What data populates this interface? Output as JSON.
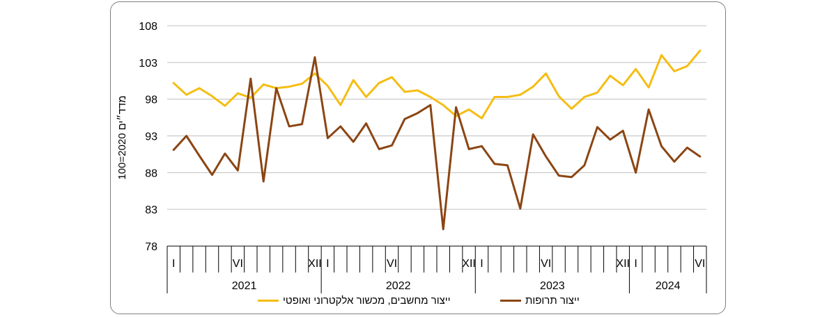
{
  "chart_data": {
    "type": "line",
    "ylabel": "מדד״ים 2020=100",
    "ylim": [
      78,
      108
    ],
    "yticks": [
      "108",
      "103",
      "98",
      "93",
      "88",
      "83",
      "78"
    ],
    "month_labels": [
      "I",
      "",
      "",
      "",
      "",
      "VI",
      "",
      "",
      "",
      "",
      "",
      "XII",
      "I",
      "",
      "",
      "",
      "",
      "VI",
      "",
      "",
      "",
      "",
      "",
      "XII",
      "I",
      "",
      "",
      "",
      "",
      "VI",
      "",
      "",
      "",
      "",
      "",
      "XII",
      "I",
      "",
      "",
      "",
      "",
      "VI"
    ],
    "years": [
      "2021",
      "2022",
      "2023",
      "2024"
    ],
    "series": [
      {
        "name": "ייצור מחשבים, מכשור אלקטרוני ואופטי",
        "color": "#f5bd13",
        "values": [
          100.2,
          98.6,
          99.5,
          98.4,
          97.1,
          98.8,
          98.2,
          100.0,
          99.5,
          99.7,
          100.1,
          101.5,
          99.8,
          97.2,
          100.6,
          98.3,
          100.2,
          101.0,
          99.0,
          99.2,
          98.3,
          97.2,
          95.7,
          96.6,
          95.4,
          98.3,
          98.3,
          98.6,
          99.7,
          101.5,
          98.4,
          96.7,
          98.3,
          98.9,
          101.2,
          99.9,
          102.1,
          99.6,
          104.0,
          101.8,
          102.5,
          104.6
        ]
      },
      {
        "name": "ייצור תרופות",
        "color": "#8b4513",
        "values": [
          91.1,
          93.0,
          90.3,
          87.7,
          90.6,
          88.3,
          100.8,
          86.8,
          99.5,
          94.3,
          94.6,
          103.7,
          92.7,
          94.3,
          92.2,
          94.7,
          91.2,
          91.7,
          95.3,
          96.1,
          97.2,
          80.3,
          96.9,
          91.2,
          91.6,
          89.2,
          89.0,
          83.1,
          93.2,
          90.2,
          87.6,
          87.4,
          89.0,
          94.2,
          92.5,
          93.7,
          88.0,
          96.6,
          91.6,
          89.5,
          91.4,
          90.2
        ]
      }
    ],
    "grid": true,
    "legend_position": "bottom"
  }
}
